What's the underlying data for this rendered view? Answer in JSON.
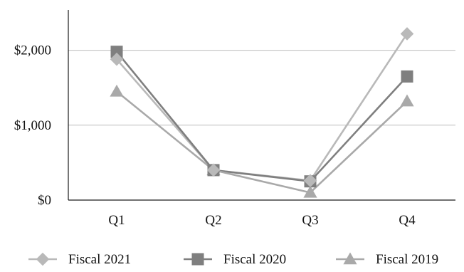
{
  "chart_data": {
    "type": "line",
    "title": "",
    "xlabel": "",
    "ylabel": "",
    "categories": [
      "Q1",
      "Q2",
      "Q3",
      "Q4"
    ],
    "ylim": [
      0,
      2500
    ],
    "yticks": [
      0,
      1000,
      2000
    ],
    "ytick_labels": [
      "$0",
      "$1,000",
      "$2,000"
    ],
    "grid": true,
    "legend_position": "bottom",
    "series": [
      {
        "name": "Fiscal 2021",
        "values": [
          1880,
          400,
          260,
          2220
        ],
        "marker": "diamond",
        "color": "#b9b9b9"
      },
      {
        "name": "Fiscal 2020",
        "values": [
          1980,
          400,
          250,
          1650
        ],
        "marker": "square",
        "color": "#7f7f7f"
      },
      {
        "name": "Fiscal 2019",
        "values": [
          1450,
          400,
          100,
          1320
        ],
        "marker": "triangle",
        "color": "#a9a9a9"
      }
    ]
  }
}
